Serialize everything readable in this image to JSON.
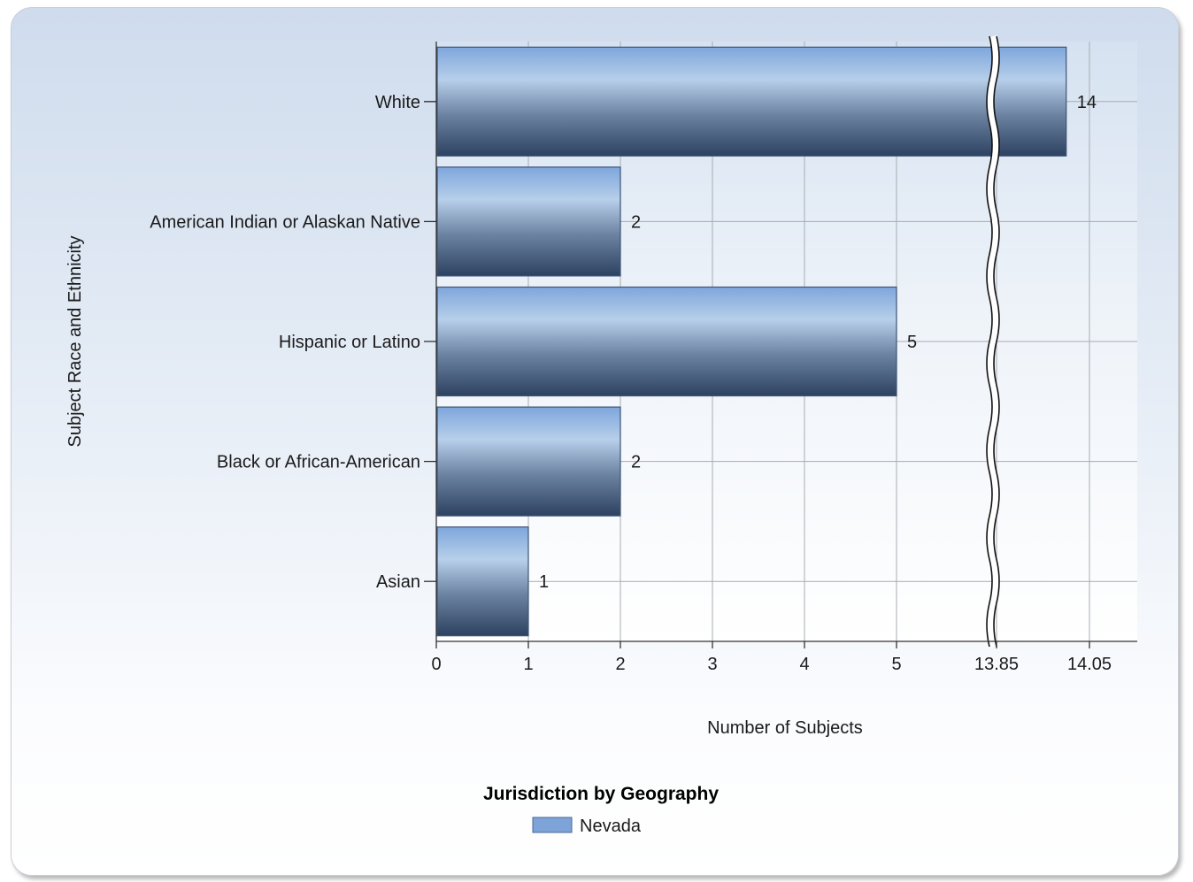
{
  "chart_data": {
    "type": "bar",
    "orientation": "horizontal",
    "categories": [
      "White",
      "American Indian or Alaskan Native",
      "Hispanic or Latino",
      "Black or African-American",
      "Asian"
    ],
    "series": [
      {
        "name": "Nevada",
        "values": [
          14,
          2,
          5,
          2,
          1
        ]
      }
    ],
    "data_labels": [
      "14",
      "2",
      "5",
      "2",
      "1"
    ],
    "xlabel": "Number of Subjects",
    "ylabel": "Subject Race and Ethnicity",
    "x_ticks": [
      "0",
      "1",
      "2",
      "3",
      "4",
      "5",
      "13.85",
      "14.05"
    ],
    "x_tick_values": [
      0,
      1,
      2,
      3,
      4,
      5,
      13.85,
      14.05
    ],
    "scale_break": [
      5,
      13.85
    ],
    "xlim": [
      0,
      14.05
    ],
    "grid": true,
    "legend_title": "Jurisdiction by Geography",
    "legend_position": "bottom",
    "colors": {
      "bar": "#7da3d8",
      "bar_dark": "#2e4360",
      "bar_light": "#b7cfea",
      "legend_swatch": "#7da3d8"
    }
  }
}
